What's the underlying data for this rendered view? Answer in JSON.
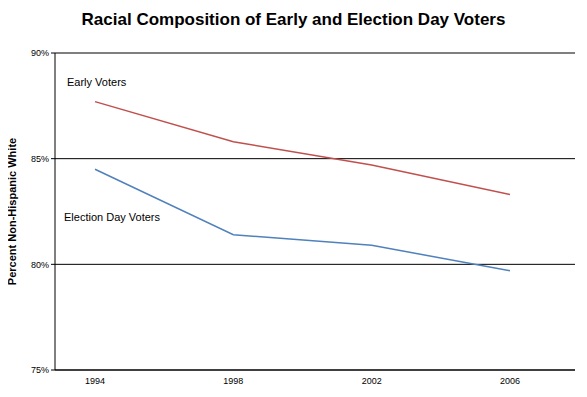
{
  "chart_data": {
    "type": "line",
    "title": "Racial Composition of Early and Election Day Voters",
    "y_label": "Percent Non-Hispanic White",
    "categories": [
      "1994",
      "1998",
      "2002",
      "2006"
    ],
    "series": [
      {
        "name": "Early Voters",
        "color": "#c0504d",
        "values": [
          87.7,
          85.8,
          84.7,
          83.3
        ]
      },
      {
        "name": "Election Day Voters",
        "color": "#4f81bd",
        "values": [
          84.5,
          81.4,
          80.9,
          79.7
        ]
      }
    ],
    "ylim": [
      75,
      90
    ],
    "yticks": [
      {
        "value": 75,
        "label": "75%"
      },
      {
        "value": 80,
        "label": "80%"
      },
      {
        "value": 85,
        "label": "85%"
      },
      {
        "value": 90,
        "label": "90%"
      }
    ],
    "grid": true
  }
}
